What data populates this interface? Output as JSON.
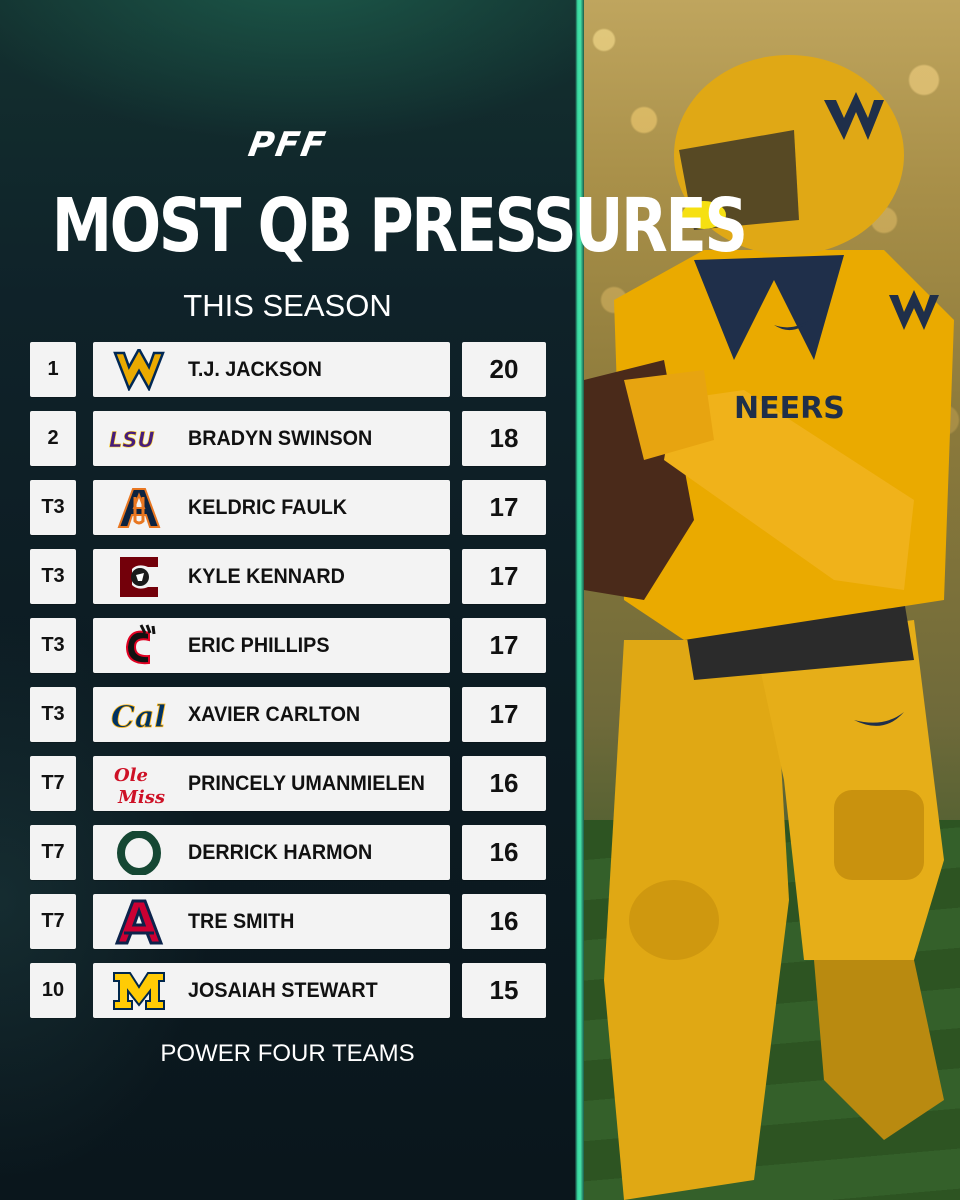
{
  "brand": "PFF",
  "title": "MOST QB PRESSURES",
  "subtitle": "THIS SEASON",
  "footer": "POWER FOUR TEAMS",
  "rows": [
    {
      "rank": "1",
      "team": "West Virginia",
      "logo": "wv-logo",
      "name": "T.J. JACKSON",
      "value": "20"
    },
    {
      "rank": "2",
      "team": "LSU",
      "logo": "lsu-logo",
      "name": "BRADYN SWINSON",
      "value": "18"
    },
    {
      "rank": "T3",
      "team": "Auburn",
      "logo": "au-logo",
      "name": "KELDRIC FAULK",
      "value": "17"
    },
    {
      "rank": "T3",
      "team": "South Carolina",
      "logo": "sc-logo",
      "name": "KYLE KENNARD",
      "value": "17"
    },
    {
      "rank": "T3",
      "team": "Cincinnati",
      "logo": "cincinnati-logo",
      "name": "ERIC PHILLIPS",
      "value": "17"
    },
    {
      "rank": "T3",
      "team": "Cal",
      "logo": "cal-logo",
      "name": "XAVIER CARLTON",
      "value": "17"
    },
    {
      "rank": "T7",
      "team": "Ole Miss",
      "logo": "ole-miss-logo",
      "name": "PRINCELY UMANMIELEN",
      "value": "16"
    },
    {
      "rank": "T7",
      "team": "Oregon",
      "logo": "oregon-logo",
      "name": "DERRICK HARMON",
      "value": "16"
    },
    {
      "rank": "T7",
      "team": "Arizona",
      "logo": "arizona-logo",
      "name": "TRE SMITH",
      "value": "16"
    },
    {
      "rank": "10",
      "team": "Michigan",
      "logo": "michigan-logo",
      "name": "JOSAIAH STEWART",
      "value": "15"
    }
  ],
  "colors": {
    "background": "#0d1c24",
    "accent": "#3ad8a0",
    "row_bg": "#f3f3f3",
    "text": "#111111",
    "jersey": "#eaaa00",
    "navy": "#002855"
  }
}
